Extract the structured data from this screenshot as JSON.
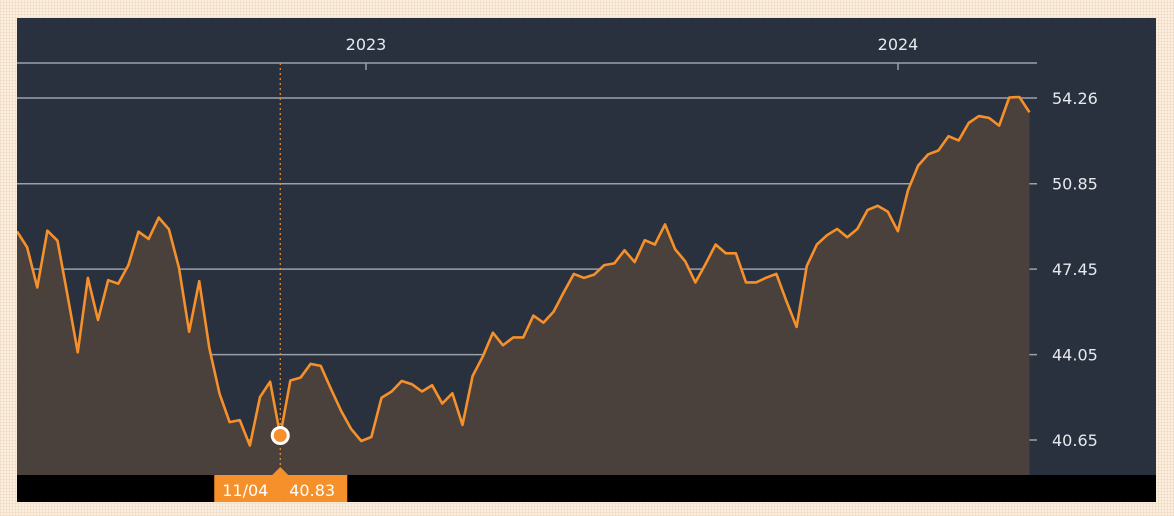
{
  "chart_data": {
    "type": "area",
    "x_ticks": [
      "2023",
      "2024"
    ],
    "y_ticks": [
      "54.26",
      "50.85",
      "47.45",
      "44.05",
      "40.65"
    ],
    "ylim": [
      39.2,
      55.6
    ],
    "grid": true,
    "legend": "none",
    "series": [
      {
        "values": [
          48.95,
          48.32,
          46.72,
          48.98,
          48.58,
          46.38,
          44.14,
          47.1,
          45.43,
          47.01,
          46.87,
          47.61,
          48.94,
          48.65,
          49.5,
          49.04,
          47.5,
          44.96,
          46.97,
          44.3,
          42.5,
          41.36,
          41.44,
          40.43,
          42.36,
          42.97,
          40.83,
          43.02,
          43.13,
          43.68,
          43.6,
          42.69,
          41.82,
          41.09,
          40.61,
          40.77,
          42.33,
          42.58,
          43.0,
          42.87,
          42.58,
          42.83,
          42.1,
          42.51,
          41.25,
          43.2,
          43.97,
          44.92,
          44.42,
          44.73,
          44.73,
          45.6,
          45.32,
          45.76,
          46.53,
          47.26,
          47.1,
          47.23,
          47.61,
          47.68,
          48.2,
          47.73,
          48.6,
          48.43,
          49.23,
          48.24,
          47.76,
          46.92,
          47.65,
          48.43,
          48.08,
          48.08,
          46.92,
          46.92,
          47.11,
          47.26,
          46.17,
          45.15,
          47.57,
          48.43,
          48.8,
          49.05,
          48.72,
          49.05,
          49.8,
          49.97,
          49.74,
          48.96,
          50.59,
          51.57,
          52.02,
          52.17,
          52.74,
          52.57,
          53.27,
          53.54,
          53.47,
          53.16,
          54.28,
          54.3,
          53.69
        ]
      }
    ],
    "tooltip": {
      "date": "11/04",
      "value": "40.83",
      "index": 26
    },
    "colors": {
      "background": "#28313d",
      "line": "#f6902b",
      "area": "#4a413c",
      "grid": "#9aa1ab",
      "bottom_bar": "#000000",
      "badge": "#f6902b",
      "page": "#fbeede"
    }
  }
}
